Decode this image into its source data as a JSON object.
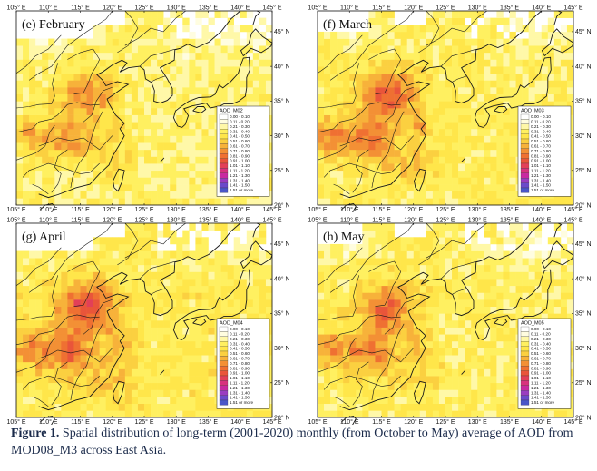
{
  "map": {
    "lon_ticks": [
      "105° E",
      "110° E",
      "115° E",
      "120° E",
      "125° E",
      "130° E",
      "135° E",
      "140° E",
      "145° E"
    ],
    "lat_ticks": [
      "45° N",
      "40° N",
      "35° N",
      "30° N",
      "25° N",
      "20° N"
    ],
    "legend_classes": [
      "0.00 - 0.10",
      "0.11 - 0.20",
      "0.21 - 0.30",
      "0.31 - 0.40",
      "0.41 - 0.50",
      "0.51 - 0.60",
      "0.61 - 0.70",
      "0.71 - 0.80",
      "0.81 - 0.90",
      "0.91 - 1.00",
      "1.01 - 1.10",
      "1.11 - 1.20",
      "1.21 - 1.30",
      "1.31 - 1.40",
      "1.41 - 1.50",
      "1.51 or more"
    ],
    "legend_colors": [
      "#ffffff",
      "#fffde0",
      "#fff8a8",
      "#fff060",
      "#ffe64a",
      "#fbd040",
      "#f7b23a",
      "#f39035",
      "#ef7032",
      "#e9553a",
      "#e24058",
      "#d8327e",
      "#c82aa0",
      "#9a3cc0",
      "#6a4aca",
      "#4a56c8"
    ],
    "panels": [
      {
        "title": "(e) February",
        "legend_title": "AOD_M02",
        "intensity": 0.85
      },
      {
        "title": "(f) March",
        "legend_title": "AOD_M03",
        "intensity": 1.0
      },
      {
        "title": "(g) April",
        "legend_title": "AOD_M04",
        "intensity": 1.05
      },
      {
        "title": "(h) May",
        "legend_title": "AOD_M05",
        "intensity": 0.95
      }
    ]
  },
  "caption": {
    "label": "Figure 1.",
    "text": " Spatial distribution of long-term (2001-2020) monthly (from October to May) average of AOD from MOD08_M3 across East Asia."
  }
}
